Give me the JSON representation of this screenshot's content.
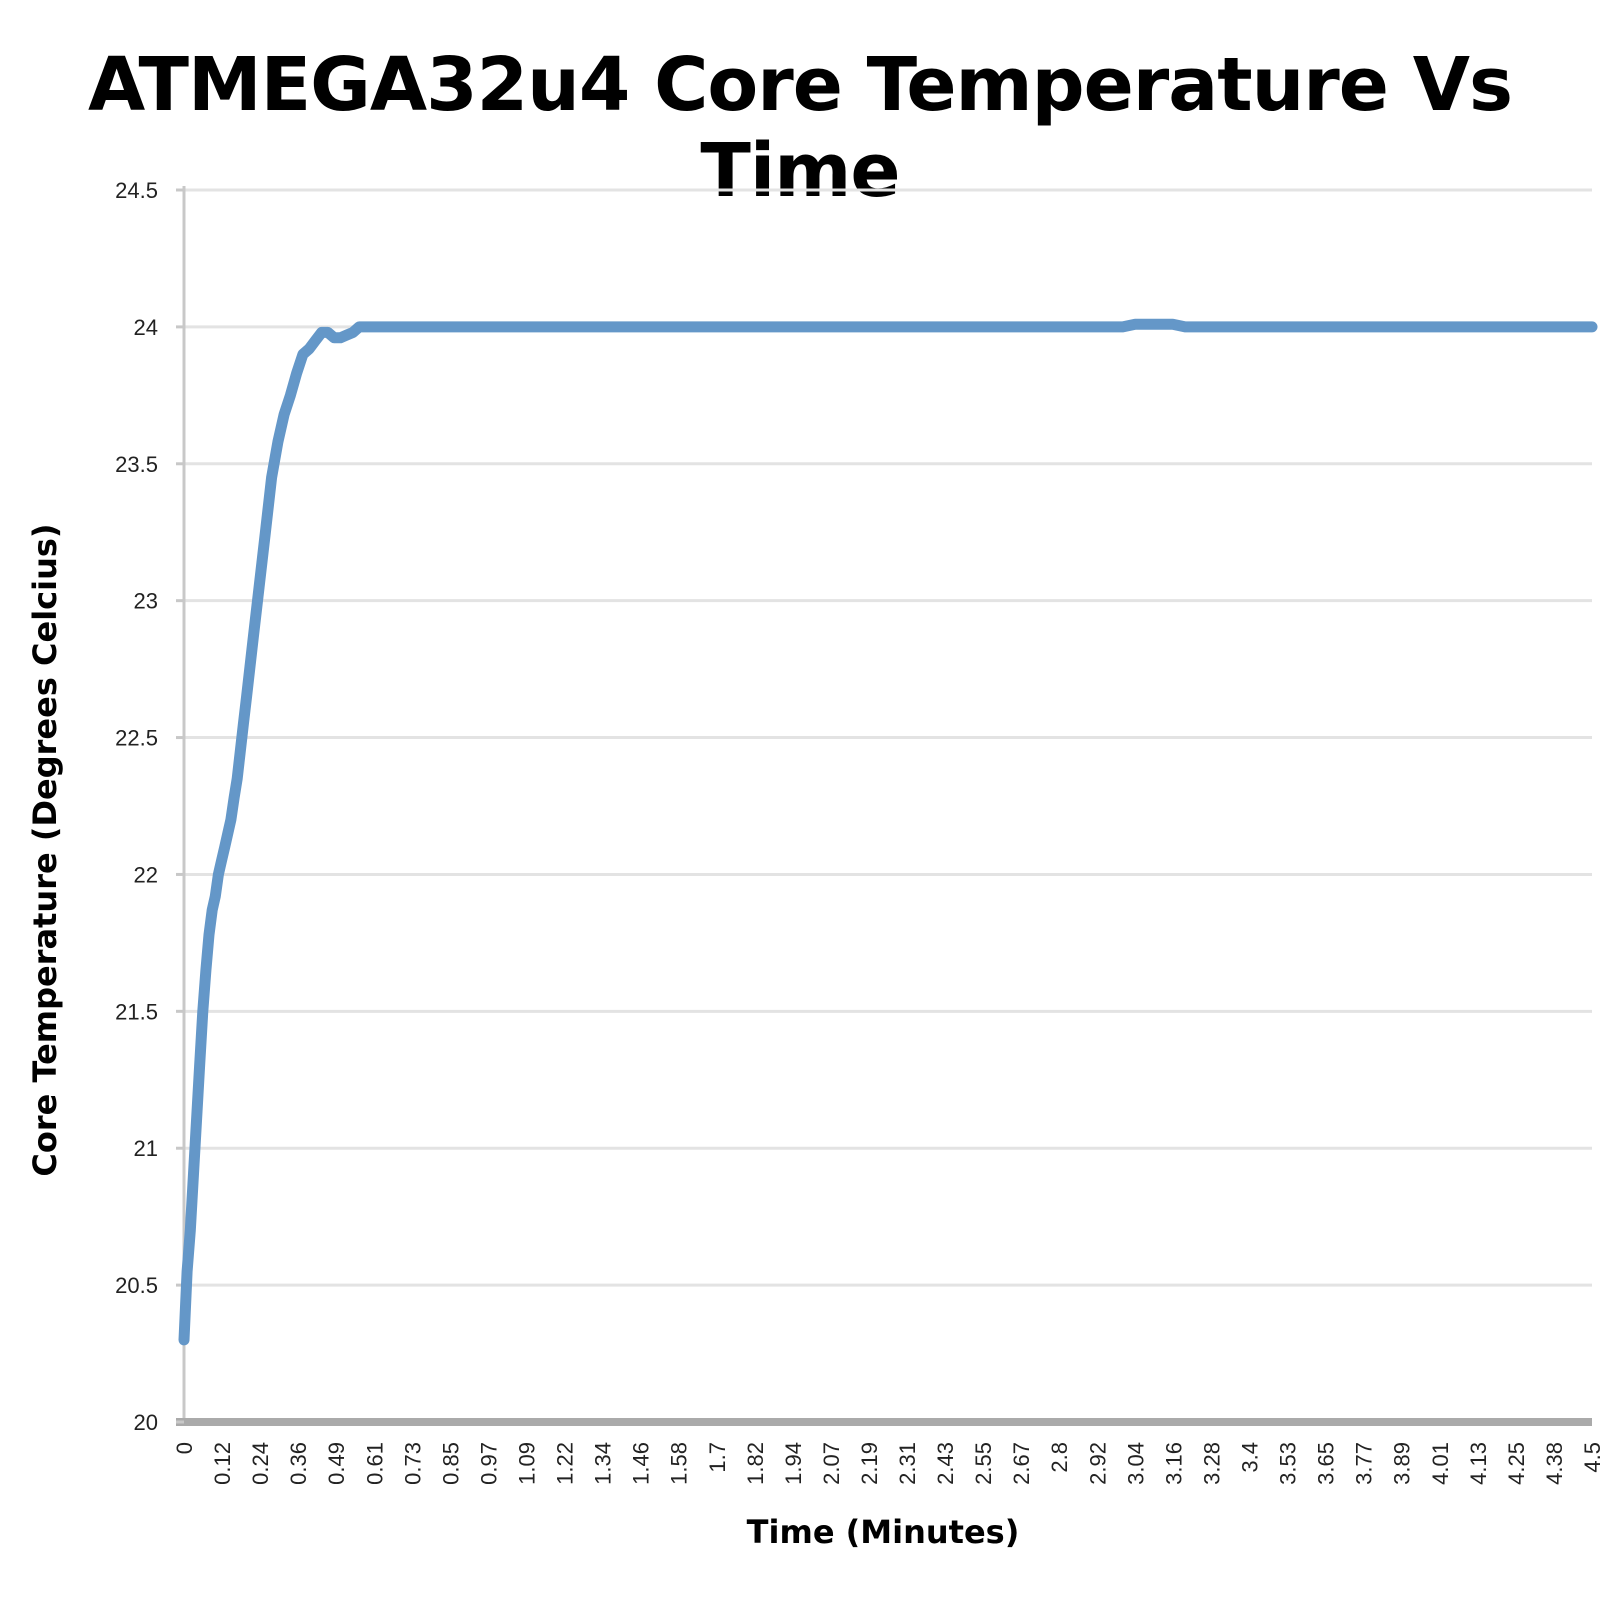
{
  "chart_data": {
    "type": "line",
    "title": "ATMEGA32u4 Core Temperature Vs Time",
    "xlabel": "Time (Minutes)",
    "ylabel": "Core Temperature (Degrees Celcius)",
    "ylim": [
      20,
      24.5
    ],
    "yticks": [
      "20",
      "20.5",
      "21",
      "21.5",
      "22",
      "22.5",
      "23",
      "23.5",
      "24",
      "24.5"
    ],
    "xticks": [
      "0",
      "0.12",
      "0.24",
      "0.36",
      "0.49",
      "0.61",
      "0.73",
      "0.85",
      "0.97",
      "1.09",
      "1.22",
      "1.34",
      "1.46",
      "1.58",
      "1.7",
      "1.82",
      "1.94",
      "2.07",
      "2.19",
      "2.31",
      "2.43",
      "2.55",
      "2.67",
      "2.8",
      "2.92",
      "3.04",
      "3.16",
      "3.28",
      "3.4",
      "3.53",
      "3.65",
      "3.77",
      "3.89",
      "4.01",
      "4.13",
      "4.25",
      "4.38",
      "4.5"
    ],
    "grid": true,
    "colors": {
      "series": "#6497c8",
      "grid": "#e3e3e3",
      "axis": "#c8c8c8",
      "x_axis": "#aaaaaa"
    },
    "series": [
      {
        "x": [
          0,
          0.01,
          0.02,
          0.03,
          0.04,
          0.05,
          0.06,
          0.07,
          0.08,
          0.09,
          0.1,
          0.11,
          0.12,
          0.13,
          0.14,
          0.15,
          0.16,
          0.17,
          0.18,
          0.19,
          0.2,
          0.22,
          0.24,
          0.26,
          0.28,
          0.3,
          0.32,
          0.34,
          0.36,
          0.38,
          0.4,
          0.42,
          0.44,
          0.46,
          0.48,
          0.5,
          0.52,
          0.54,
          0.56,
          0.58,
          0.6,
          0.62,
          0.64,
          0.66,
          0.68,
          0.7,
          0.72,
          0.74,
          0.76,
          0.78,
          0.8,
          0.85,
          0.9,
          0.95,
          1.0,
          1.5,
          2.0,
          2.5,
          3.0,
          3.04,
          3.1,
          3.16,
          3.2,
          3.5,
          4.0,
          4.5
        ],
        "values": [
          20.3,
          20.55,
          20.7,
          20.9,
          21.1,
          21.3,
          21.5,
          21.65,
          21.78,
          21.87,
          21.92,
          22.0,
          22.05,
          22.1,
          22.15,
          22.2,
          22.28,
          22.35,
          22.45,
          22.55,
          22.65,
          22.85,
          23.05,
          23.25,
          23.45,
          23.58,
          23.68,
          23.75,
          23.83,
          23.9,
          23.92,
          23.95,
          23.98,
          23.98,
          23.96,
          23.96,
          23.97,
          23.98,
          24.0,
          24.0,
          24.0,
          24.0,
          24.0,
          24.0,
          24.0,
          24.0,
          24.0,
          24.0,
          24.0,
          24.0,
          24.0,
          24.0,
          24.0,
          24.0,
          24.0,
          24.0,
          24.0,
          24.0,
          24.0,
          24.01,
          24.01,
          24.01,
          24.0,
          24.0,
          24.0,
          24.0
        ]
      }
    ]
  }
}
